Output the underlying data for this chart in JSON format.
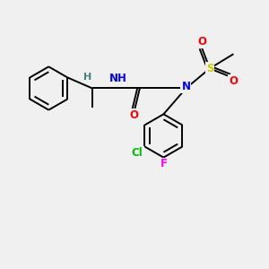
{
  "background_color": "#f0f0f0",
  "bond_color": "#000000",
  "bond_width": 1.4,
  "atom_colors": {
    "N": "#0000ff",
    "O": "#ff0000",
    "S": "#cccc00",
    "Cl": "#00bb00",
    "F": "#ff00ff",
    "H": "#408080",
    "C": "#000000"
  },
  "figsize": [
    3.0,
    3.0
  ],
  "dpi": 100
}
